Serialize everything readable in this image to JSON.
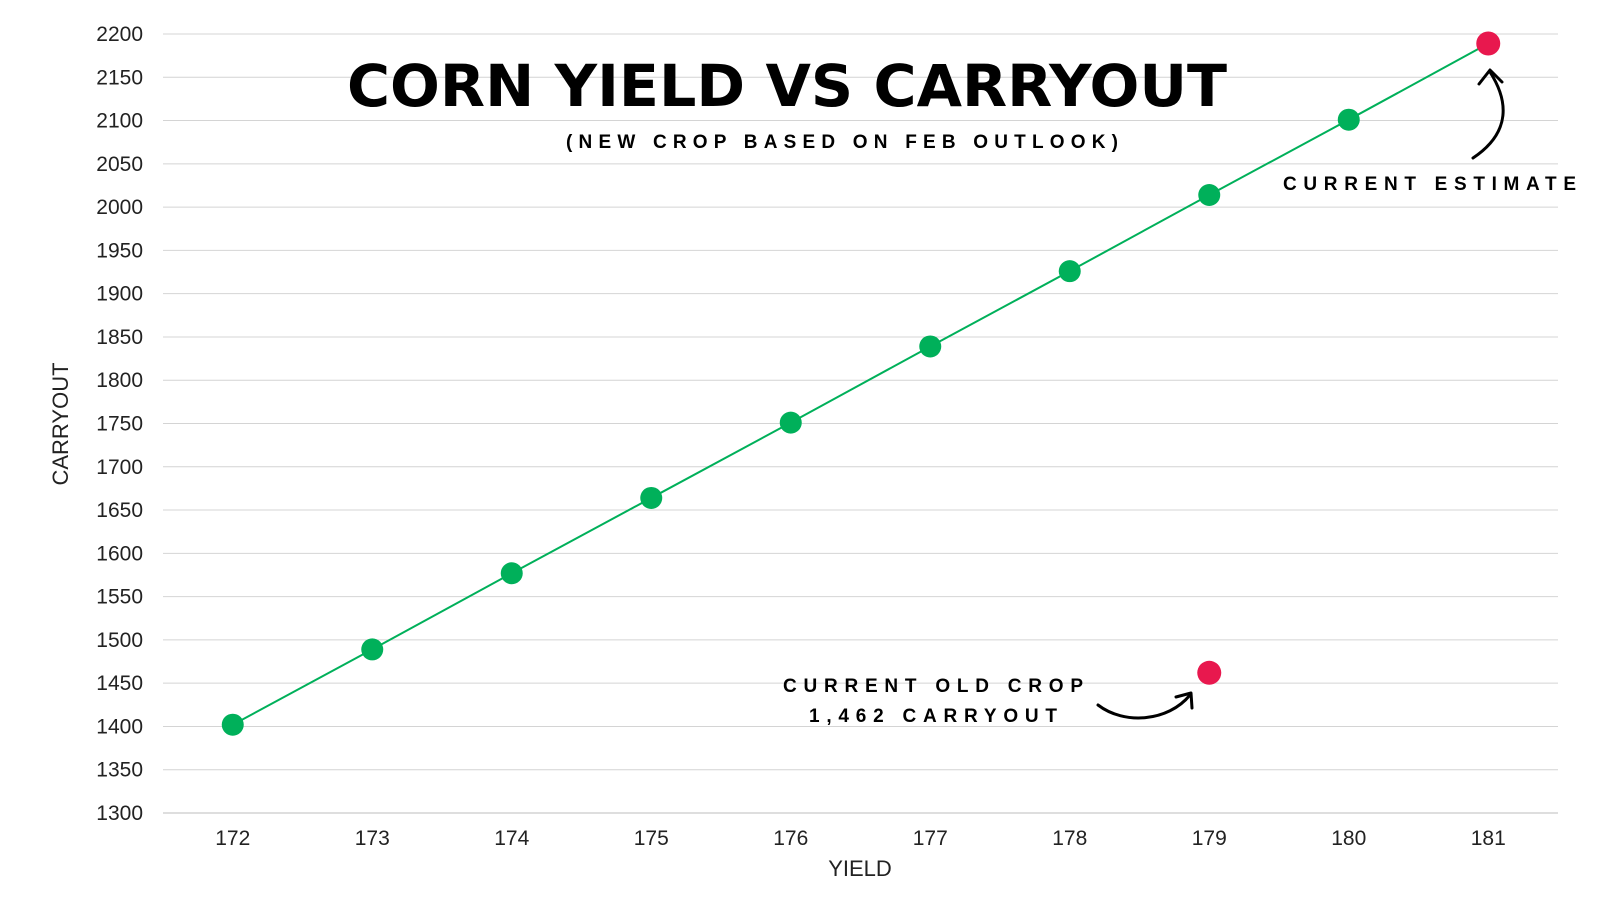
{
  "chart_data": {
    "type": "line",
    "title": "CORN YIELD VS CARRYOUT",
    "subtitle": "(NEW CROP BASED ON FEB OUTLOOK)",
    "xlabel": "YIELD",
    "ylabel": "CARRYOUT",
    "x": [
      172,
      173,
      174,
      175,
      176,
      177,
      178,
      179,
      180,
      181
    ],
    "series": [
      {
        "name": "Carryout",
        "values": [
          1402,
          1489,
          1577,
          1664,
          1751,
          1839,
          1926,
          2014,
          2101,
          2189
        ],
        "color": "#00b05a"
      }
    ],
    "highlights": [
      {
        "x": 181,
        "y": 2189,
        "color": "#e8184e",
        "label": "CURRENT ESTIMATE"
      },
      {
        "x": 179,
        "y": 1462,
        "color": "#e8184e",
        "label_lines": [
          "CURRENT OLD CROP",
          "1,462 CARRYOUT"
        ]
      }
    ],
    "ylim": [
      1300,
      2200
    ],
    "ytick_step": 50,
    "grid": true,
    "colors": {
      "line": "#00b05a",
      "marker": "#00b05a",
      "highlight": "#e8184e",
      "grid": "#d4d4d4",
      "text": "#222222"
    }
  }
}
